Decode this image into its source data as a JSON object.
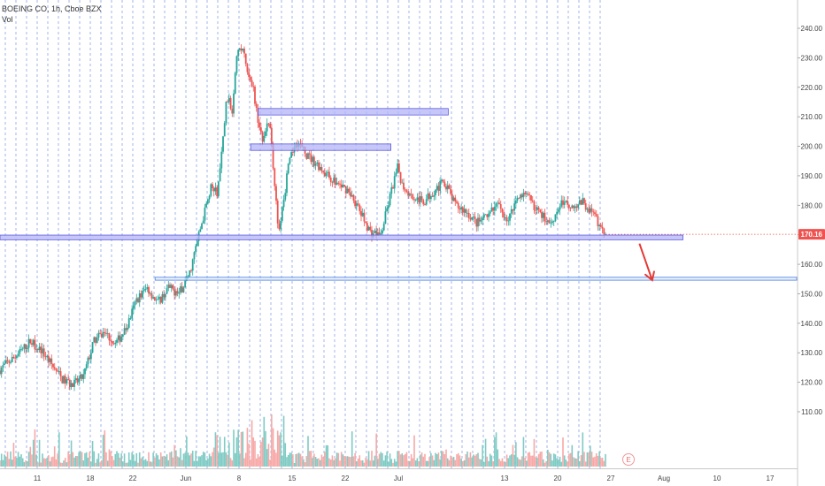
{
  "header": {
    "symbol_line": "BOEING CO, 1h, Cboe BZX",
    "volume_label": "Vol"
  },
  "price_tag": {
    "value": "170.16",
    "color": "#ef5350"
  },
  "earnings_marker": "E",
  "colors": {
    "up": "#26a69a",
    "down": "#ef5350",
    "up_volume": "#80cbc4",
    "down_volume": "#f7a9a7",
    "zone_fill": "#b3b3f5",
    "zone_stroke": "#5c5ce0",
    "line_zone_stroke": "#4a7fe0",
    "session_line": "#4f74d9",
    "arrow": "#e53935"
  },
  "chart_data": {
    "type": "candlestick",
    "title": "BOEING CO, 1h, Cboe BZX",
    "x_ticks": [
      {
        "label": "11",
        "t": 3
      },
      {
        "label": "18",
        "t": 8
      },
      {
        "label": "22",
        "t": 12
      },
      {
        "label": "Jun",
        "t": 17
      },
      {
        "label": "8",
        "t": 22
      },
      {
        "label": "15",
        "t": 27
      },
      {
        "label": "22",
        "t": 32
      },
      {
        "label": "Jul",
        "t": 37
      },
      {
        "label": "13",
        "t": 47
      },
      {
        "label": "20",
        "t": 52
      },
      {
        "label": "27",
        "t": 57
      },
      {
        "label": "Aug",
        "t": 62
      },
      {
        "label": "10",
        "t": 67
      },
      {
        "label": "17",
        "t": 72
      }
    ],
    "y_ticks": [
      110,
      120,
      130,
      140,
      150,
      160,
      170,
      180,
      190,
      200,
      210,
      220,
      230,
      240
    ],
    "ylim": [
      103,
      248
    ],
    "xlim": [
      0,
      75
    ],
    "last_day_with_data": 57,
    "price_path": [
      [
        0,
        124
      ],
      [
        1,
        127
      ],
      [
        2,
        130
      ],
      [
        3,
        134
      ],
      [
        4,
        131
      ],
      [
        5,
        126
      ],
      [
        6,
        121
      ],
      [
        7,
        119
      ],
      [
        8,
        122
      ],
      [
        9,
        134
      ],
      [
        10,
        137
      ],
      [
        11,
        133
      ],
      [
        12,
        138
      ],
      [
        13,
        148
      ],
      [
        14,
        152
      ],
      [
        15,
        147
      ],
      [
        16,
        152
      ],
      [
        17,
        150
      ],
      [
        18,
        157
      ],
      [
        19,
        172
      ],
      [
        20,
        186
      ],
      [
        20.6,
        184
      ],
      [
        21,
        197
      ],
      [
        21.5,
        217
      ],
      [
        22,
        212
      ],
      [
        22.4,
        232
      ],
      [
        23,
        233
      ],
      [
        23.6,
        222
      ],
      [
        24,
        219
      ],
      [
        24.4,
        210
      ],
      [
        24.8,
        202
      ],
      [
        25,
        205
      ],
      [
        25.5,
        208
      ],
      [
        26,
        188
      ],
      [
        26.4,
        170
      ],
      [
        26.8,
        181
      ],
      [
        27.3,
        193
      ],
      [
        28,
        202
      ],
      [
        29,
        197
      ],
      [
        30,
        194
      ],
      [
        31,
        190
      ],
      [
        32,
        187
      ],
      [
        33,
        185
      ],
      [
        34,
        178
      ],
      [
        35,
        171
      ],
      [
        36,
        170
      ],
      [
        37,
        185
      ],
      [
        37.6,
        193
      ],
      [
        38,
        187
      ],
      [
        39,
        183
      ],
      [
        40,
        181
      ],
      [
        41,
        185
      ],
      [
        42,
        188
      ],
      [
        43,
        180
      ],
      [
        44,
        178
      ],
      [
        45,
        174
      ],
      [
        46,
        176
      ],
      [
        47,
        180
      ],
      [
        48,
        175
      ],
      [
        49,
        184
      ],
      [
        50,
        182
      ],
      [
        51,
        177
      ],
      [
        52,
        174
      ],
      [
        53,
        181
      ],
      [
        54,
        180
      ],
      [
        55,
        181
      ],
      [
        56,
        177
      ],
      [
        57,
        170.16
      ]
    ],
    "zones": [
      {
        "t0": 24.3,
        "t1": 42.2,
        "low": 210.6,
        "high": 212.8,
        "kind": "box"
      },
      {
        "t0": 23.6,
        "t1": 36.8,
        "low": 198.6,
        "high": 200.8,
        "kind": "box"
      },
      {
        "t0": 0,
        "t1": 64.3,
        "low": 168.3,
        "high": 169.9,
        "kind": "box"
      },
      {
        "t0": 14.6,
        "t1": 75,
        "low": 154.6,
        "high": 155.6,
        "kind": "line"
      }
    ],
    "forecast_arrow": {
      "from": [
        60.2,
        167
      ],
      "to": [
        61.4,
        154.6
      ]
    },
    "last_price": 170.16
  }
}
